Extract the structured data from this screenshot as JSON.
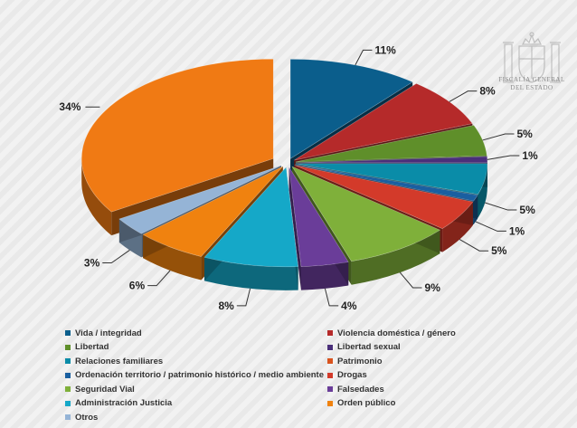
{
  "chart_data": {
    "type": "pie",
    "title": "",
    "slices": [
      {
        "name": "Vida / integridad",
        "value": 11,
        "label": "11%",
        "color": "#0b5e8c"
      },
      {
        "name": "Violencia doméstica / género",
        "value": 8,
        "label": "8%",
        "color": "#b52a2a"
      },
      {
        "name": "Libertad",
        "value": 5,
        "label": "5%",
        "color": "#5f8f2a"
      },
      {
        "name": "Libertad sexual",
        "value": 1,
        "label": "1%",
        "color": "#4a2f7a"
      },
      {
        "name": "Relaciones familiares",
        "value": 5,
        "label": "5%",
        "color": "#0a8ca8"
      },
      {
        "name": "Ordenación territorio / patrimonio histórico / medio ambiente",
        "value": 1,
        "label": "1%",
        "color": "#1a5fa0"
      },
      {
        "name": "Drogas",
        "value": 5,
        "label": "5%",
        "color": "#d33a2a"
      },
      {
        "name": "Seguridad Vial",
        "value": 9,
        "label": "9%",
        "color": "#7fb03a"
      },
      {
        "name": "Falsedades",
        "value": 4,
        "label": "4%",
        "color": "#6a3d99"
      },
      {
        "name": "Administración Justicia",
        "value": 8,
        "label": "8%",
        "color": "#15a8c8"
      },
      {
        "name": "Orden público",
        "value": 6,
        "label": "6%",
        "color": "#f0820f"
      },
      {
        "name": "Otros",
        "value": 3,
        "label": "3%",
        "color": "#95b4d6"
      },
      {
        "name": "Patrimonio",
        "value": 34,
        "label": "34%",
        "color": "#f07a14"
      }
    ],
    "legend": [
      {
        "name": "Vida / integridad",
        "color": "#0b5e8c"
      },
      {
        "name": "Violencia doméstica / género",
        "color": "#b52a2a"
      },
      {
        "name": "Libertad",
        "color": "#5f8f2a"
      },
      {
        "name": "Libertad sexual",
        "color": "#4a2f7a"
      },
      {
        "name": "Relaciones familiares",
        "color": "#0a8ca8"
      },
      {
        "name": "Patrimonio",
        "color": "#d9531e"
      },
      {
        "name": "Ordenación territorio / patrimonio histórico / medio ambiente",
        "color": "#1a5fa0"
      },
      {
        "name": "Drogas",
        "color": "#d33a2a"
      },
      {
        "name": "Seguridad Vial",
        "color": "#7fb03a"
      },
      {
        "name": "Falsedades",
        "color": "#6a3d99"
      },
      {
        "name": "Administración Justicia",
        "color": "#15a8c8"
      },
      {
        "name": "Orden público",
        "color": "#f0820f"
      },
      {
        "name": "Otros",
        "color": "#95b4d6"
      }
    ],
    "legend_placement": "bottom"
  },
  "seal": {
    "line1": "FISCALÍA GENERAL",
    "line2": "DEL ESTADO"
  }
}
